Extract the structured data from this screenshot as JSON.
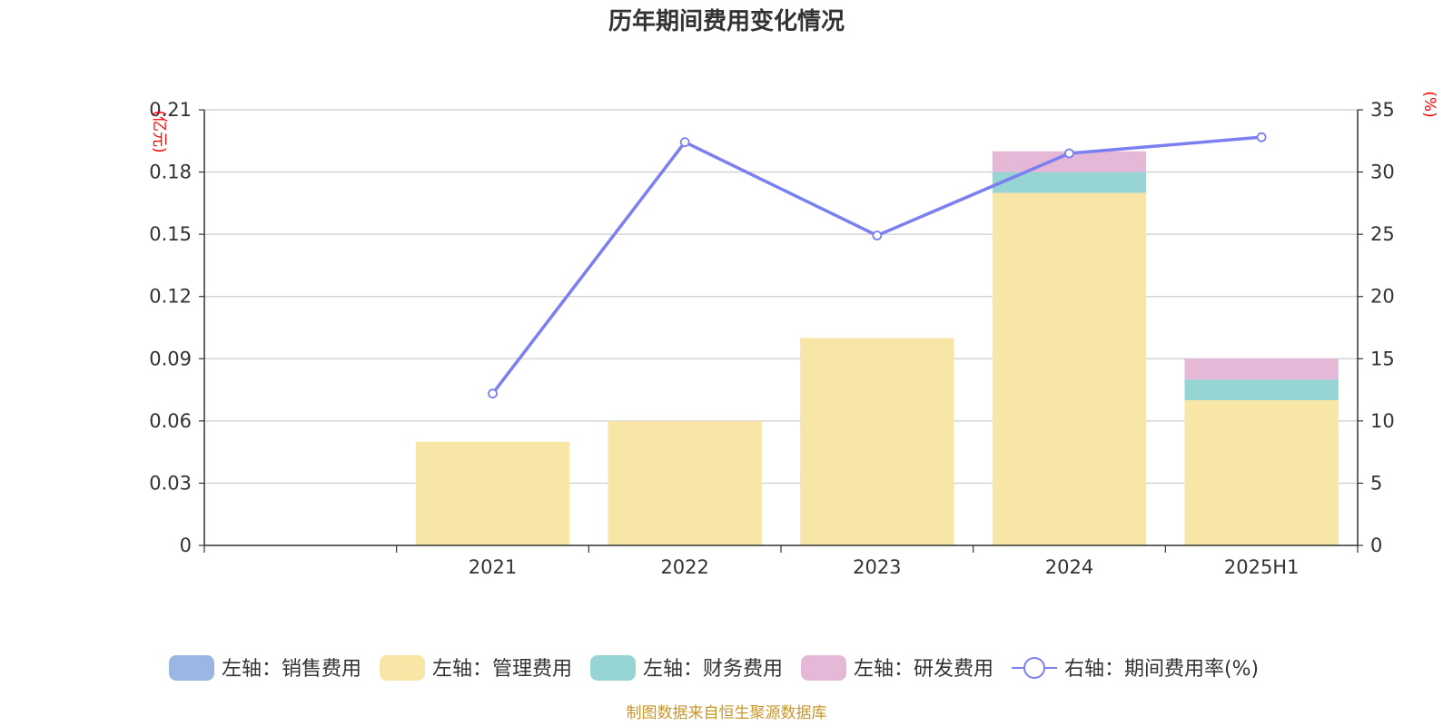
{
  "chart_data": {
    "type": "bar+line",
    "title": "历年期间费用变化情况",
    "categories": [
      "",
      "2021",
      "2022",
      "2023",
      "2024",
      "2025H1"
    ],
    "series": [
      {
        "name": "左轴：销售费用",
        "type": "bar",
        "axis": "left",
        "color": "#9bb6e2",
        "values": [
          null,
          0,
          0,
          0,
          0,
          0
        ]
      },
      {
        "name": "左轴：管理费用",
        "type": "bar",
        "axis": "left",
        "color": "#f8e6a6",
        "values": [
          null,
          0.05,
          0.06,
          0.1,
          0.17,
          0.07
        ]
      },
      {
        "name": "左轴：财务费用",
        "type": "bar",
        "axis": "left",
        "color": "#97d4d4",
        "values": [
          null,
          0,
          0,
          0,
          0.01,
          0.01
        ]
      },
      {
        "name": "左轴：研发费用",
        "type": "bar",
        "axis": "left",
        "color": "#e6b8d8",
        "values": [
          null,
          0,
          0,
          0,
          0.01,
          0.01
        ]
      },
      {
        "name": "右轴：期间费用率(%)",
        "type": "line",
        "axis": "right",
        "color": "#7b7ff0",
        "values": [
          null,
          12.2,
          32.4,
          24.9,
          31.5,
          32.8
        ]
      }
    ],
    "left_axis": {
      "unit": "(亿元)",
      "min": 0,
      "max": 0.21,
      "ticks": [
        "0",
        "0.03",
        "0.06",
        "0.09",
        "0.12",
        "0.15",
        "0.18",
        "0.21"
      ]
    },
    "right_axis": {
      "unit": "(%)",
      "min": 0,
      "max": 35,
      "ticks": [
        "0",
        "5",
        "10",
        "15",
        "20",
        "25",
        "30",
        "35"
      ]
    },
    "grid": true,
    "legend_position": "bottom"
  },
  "source": "制图数据来自恒生聚源数据库"
}
